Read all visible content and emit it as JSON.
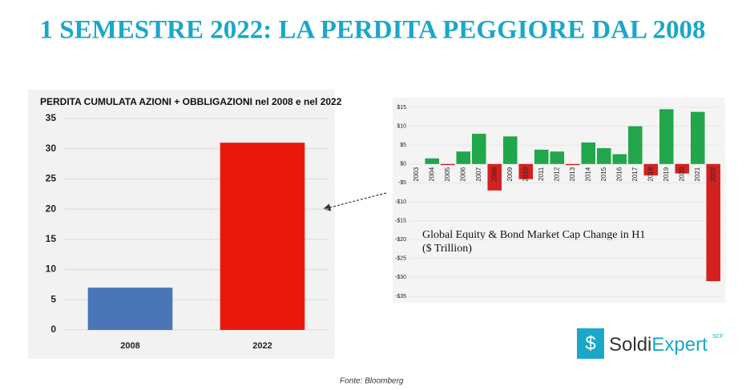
{
  "title": "1 SEMESTRE 2022: LA PERDITA PEGGIORE DAL 2008",
  "source": "Fonte: Bloomberg",
  "logo": {
    "icon": "$",
    "name_1": "Soldi",
    "name_2": "Expert",
    "suffix": "SCF"
  },
  "chart_data": [
    {
      "type": "bar",
      "title": "PERDITA CUMULATA AZIONI + OBBLIGAZIONI nel 2008 e nel 2022",
      "categories": [
        "2008",
        "2022"
      ],
      "values": [
        7,
        31
      ],
      "colors": [
        "#4a76b8",
        "#e8190c"
      ],
      "ylim": [
        0,
        35
      ],
      "yticks": [
        0,
        5,
        10,
        15,
        20,
        25,
        30,
        35
      ],
      "grid": true
    },
    {
      "type": "bar",
      "title": "Global Equity & Bond Market Cap Change in H1",
      "subtitle": "($ Trillion)",
      "categories": [
        "2003",
        "2004",
        "2005",
        "2006",
        "2007",
        "2008",
        "2009",
        "2010",
        "2011",
        "2012",
        "2013",
        "2014",
        "2015",
        "2016",
        "2017",
        "2018",
        "2019",
        "2020",
        "2021",
        "2022"
      ],
      "values": [
        0,
        1.5,
        -0.3,
        3.3,
        8,
        -7,
        7.3,
        -4,
        3.8,
        3.3,
        -0.3,
        5.7,
        4.2,
        2.6,
        10,
        -3,
        14.5,
        -2.5,
        13.8,
        -31
      ],
      "colors": {
        "positive": "#22a64b",
        "negative": "#d3211f"
      },
      "ylim": [
        -35,
        15
      ],
      "yticks": [
        {
          "value": 15,
          "label": "$15"
        },
        {
          "value": 10,
          "label": "$10"
        },
        {
          "value": 5,
          "label": "$5"
        },
        {
          "value": 0,
          "label": "$0"
        },
        {
          "value": -5,
          "label": "-$5"
        },
        {
          "value": -10,
          "label": "-$10"
        },
        {
          "value": -15,
          "label": "-$15"
        },
        {
          "value": -20,
          "label": "-$20"
        },
        {
          "value": -25,
          "label": "-$25"
        },
        {
          "value": -30,
          "label": "-$30"
        },
        {
          "value": -35,
          "label": "-$35"
        }
      ],
      "grid": true
    }
  ]
}
